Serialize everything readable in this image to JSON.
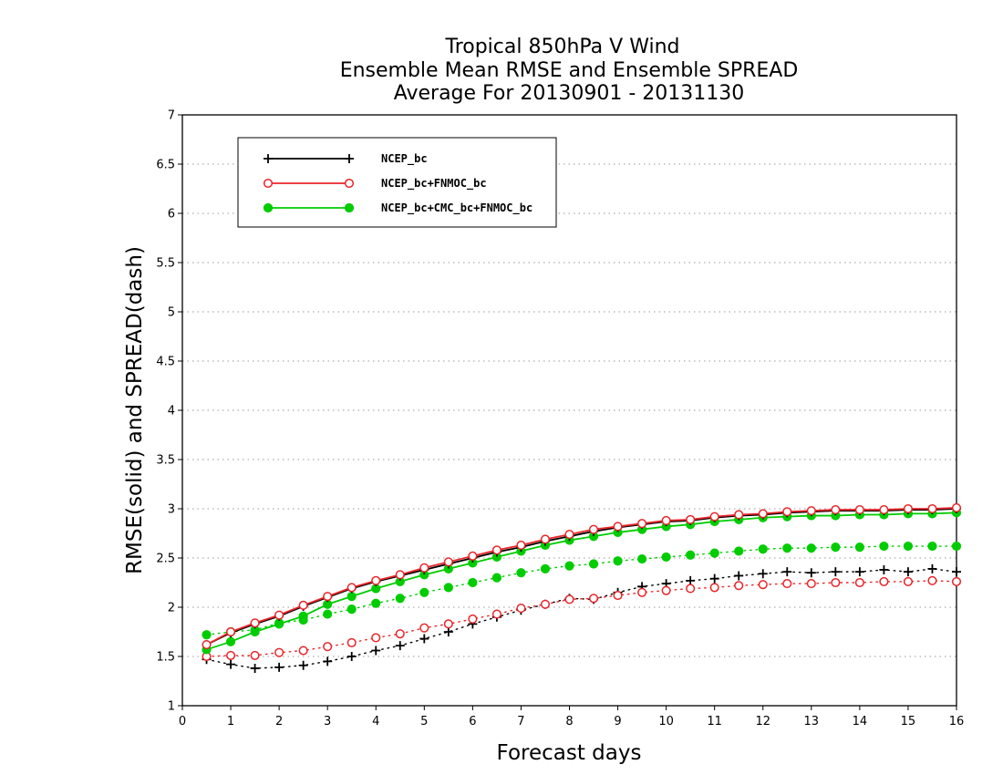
{
  "chart_data": {
    "type": "line",
    "title_lines": [
      "Tropical 850hPa V Wind",
      "Ensemble Mean RMSE and Ensemble SPREAD",
      "Average For 20130901 - 20131130"
    ],
    "xlabel": "Forecast days",
    "ylabel": "RMSE(solid) and SPREAD(dash)",
    "xlim": [
      0,
      16
    ],
    "ylim": [
      1,
      7
    ],
    "xticks": [
      "0",
      "1",
      "2",
      "3",
      "4",
      "5",
      "6",
      "7",
      "8",
      "9",
      "10",
      "11",
      "12",
      "13",
      "14",
      "15",
      "16"
    ],
    "yticks": [
      "1",
      "1.5",
      "2",
      "2.5",
      "3",
      "3.5",
      "4",
      "4.5",
      "5",
      "5.5",
      "6",
      "6.5",
      "7"
    ],
    "grid": "horizontal dotted",
    "legend_position": "top-left",
    "x": [
      0.5,
      1,
      1.5,
      2,
      2.5,
      3,
      3.5,
      4,
      4.5,
      5,
      5.5,
      6,
      6.5,
      7,
      7.5,
      8,
      8.5,
      9,
      9.5,
      10,
      10.5,
      11,
      11.5,
      12,
      12.5,
      13,
      13.5,
      14,
      14.5,
      15,
      15.5,
      16
    ],
    "series": [
      {
        "name": "NCEP_bc",
        "color": "#000000",
        "marker": "plus",
        "rmse": [
          1.62,
          1.74,
          1.83,
          1.91,
          2.01,
          2.1,
          2.19,
          2.26,
          2.32,
          2.38,
          2.44,
          2.5,
          2.56,
          2.61,
          2.67,
          2.72,
          2.77,
          2.81,
          2.84,
          2.87,
          2.88,
          2.91,
          2.93,
          2.94,
          2.96,
          2.97,
          2.98,
          2.98,
          2.98,
          2.99,
          2.99,
          3.0
        ],
        "spread": [
          1.47,
          1.42,
          1.38,
          1.39,
          1.41,
          1.45,
          1.5,
          1.56,
          1.61,
          1.68,
          1.75,
          1.83,
          1.9,
          1.97,
          2.03,
          2.09,
          2.08,
          2.15,
          2.21,
          2.24,
          2.27,
          2.29,
          2.32,
          2.34,
          2.36,
          2.35,
          2.36,
          2.36,
          2.38,
          2.36,
          2.39,
          2.36
        ]
      },
      {
        "name": "NCEP_bc+FNMOC_bc",
        "color": "#e8262b",
        "marker": "open-circle",
        "rmse": [
          1.62,
          1.75,
          1.84,
          1.92,
          2.02,
          2.11,
          2.2,
          2.27,
          2.33,
          2.4,
          2.46,
          2.52,
          2.58,
          2.63,
          2.69,
          2.74,
          2.79,
          2.82,
          2.85,
          2.88,
          2.89,
          2.92,
          2.94,
          2.95,
          2.97,
          2.98,
          2.99,
          2.99,
          2.99,
          3.0,
          3.0,
          3.01
        ],
        "spread": [
          1.5,
          1.51,
          1.51,
          1.54,
          1.56,
          1.6,
          1.64,
          1.69,
          1.73,
          1.79,
          1.83,
          1.88,
          1.93,
          1.99,
          2.03,
          2.08,
          2.09,
          2.12,
          2.15,
          2.17,
          2.19,
          2.2,
          2.22,
          2.23,
          2.24,
          2.24,
          2.25,
          2.25,
          2.26,
          2.26,
          2.27,
          2.26
        ]
      },
      {
        "name": "NCEP_bc+CMC_bc+FNMOC_bc",
        "color": "#00cc00",
        "marker": "filled-circle",
        "rmse": [
          1.57,
          1.65,
          1.75,
          1.83,
          1.91,
          2.03,
          2.11,
          2.19,
          2.26,
          2.33,
          2.39,
          2.45,
          2.51,
          2.57,
          2.63,
          2.68,
          2.72,
          2.76,
          2.79,
          2.82,
          2.84,
          2.87,
          2.89,
          2.91,
          2.92,
          2.93,
          2.93,
          2.94,
          2.94,
          2.95,
          2.95,
          2.96
        ],
        "spread": [
          1.72,
          1.75,
          1.77,
          1.84,
          1.87,
          1.93,
          1.98,
          2.04,
          2.09,
          2.15,
          2.2,
          2.25,
          2.3,
          2.35,
          2.39,
          2.42,
          2.44,
          2.47,
          2.49,
          2.51,
          2.53,
          2.55,
          2.57,
          2.59,
          2.6,
          2.6,
          2.61,
          2.61,
          2.62,
          2.62,
          2.62,
          2.62
        ]
      }
    ]
  }
}
